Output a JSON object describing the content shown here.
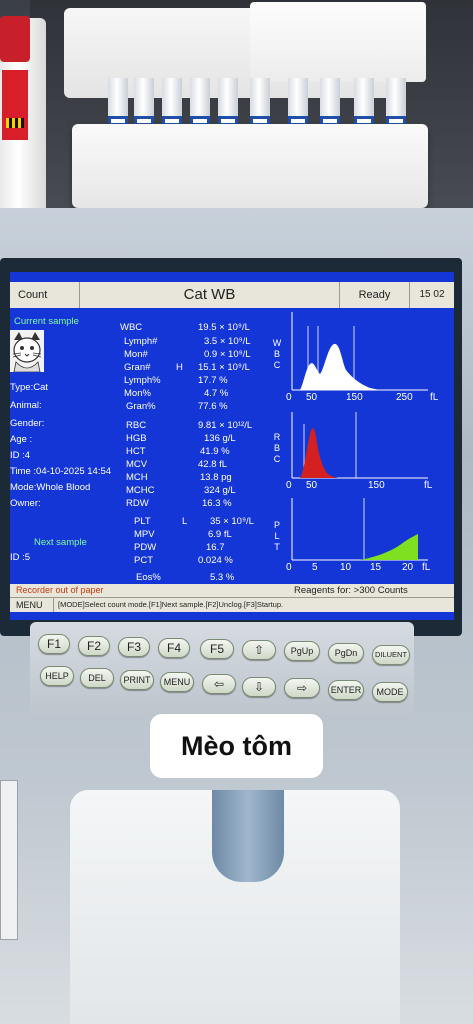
{
  "header": {
    "count_label": "Count",
    "title": "Cat WB",
    "status": "Ready",
    "time": "15 02"
  },
  "sample": {
    "current_label": "Current sample",
    "type": "Type:Cat",
    "animal": "Animal:",
    "gender": "Gender:",
    "age": "Age  :",
    "id": "ID    :4",
    "time": "Time :04-10-2025 14:54",
    "mode": "Mode:Whole Blood",
    "owner": "Owner:",
    "next_label": "Next sample",
    "next_id": "ID    :5"
  },
  "results": {
    "wbc_group": [
      {
        "name": "WBC",
        "flag": "",
        "value": "19.5 × 10⁹/L"
      },
      {
        "name": "Lymph#",
        "flag": "",
        "value": "3.5 × 10⁹/L"
      },
      {
        "name": "Mon#",
        "flag": "",
        "value": "0.9 × 10⁹/L"
      },
      {
        "name": "Gran#",
        "flag": "H",
        "value": "15.1 × 10⁹/L"
      },
      {
        "name": "Lymph%",
        "flag": "",
        "value": "17.7 %"
      },
      {
        "name": "Mon%",
        "flag": "",
        "value": "4.7 %"
      },
      {
        "name": "Gran%",
        "flag": "",
        "value": "77.6 %"
      }
    ],
    "rbc_group": [
      {
        "name": "RBC",
        "flag": "",
        "value": "9.81 × 10¹²/L"
      },
      {
        "name": "HGB",
        "flag": "",
        "value": "136 g/L"
      },
      {
        "name": "HCT",
        "flag": "",
        "value": "41.9 %"
      },
      {
        "name": "MCV",
        "flag": "",
        "value": "42.8 fL"
      },
      {
        "name": "MCH",
        "flag": "",
        "value": "13.8 pg"
      },
      {
        "name": "MCHC",
        "flag": "",
        "value": "324 g/L"
      },
      {
        "name": "RDW",
        "flag": "",
        "value": "16.3 %"
      }
    ],
    "plt_group": [
      {
        "name": "PLT",
        "flag": "L",
        "value": "35 × 10⁹/L"
      },
      {
        "name": "MPV",
        "flag": "",
        "value": "6.9 fL"
      },
      {
        "name": "PDW",
        "flag": "",
        "value": "16.7"
      },
      {
        "name": "PCT",
        "flag": "",
        "value": "0.024 %"
      }
    ],
    "eos": {
      "name": "Eos%",
      "value": "5.3 %"
    }
  },
  "histograms": {
    "wbc": {
      "axis_letters": [
        "W",
        "B",
        "C"
      ],
      "ticks": [
        "0",
        "50",
        "150",
        "250",
        "fL"
      ],
      "color": "#ffffff"
    },
    "rbc": {
      "axis_letters": [
        "R",
        "B",
        "C"
      ],
      "ticks": [
        "0",
        "50",
        "150",
        "fL"
      ],
      "color": "#d42020"
    },
    "plt": {
      "axis_letters": [
        "P",
        "L",
        "T"
      ],
      "ticks": [
        "0",
        "5",
        "10",
        "15",
        "20",
        "fL"
      ],
      "color": "#7ee01e"
    }
  },
  "messages": {
    "alert": "Recorder out of paper",
    "reagents": "Reagents for: >300 Counts",
    "menu_label": "MENU",
    "status_line": "[MODE]Select count mode.[F1]Next sample.[F2]Unclog.[F3]Startup."
  },
  "keypad": {
    "row1": [
      "F1",
      "F2",
      "F3",
      "F4",
      "F5",
      "⇧",
      "PgUp",
      "PgDn",
      "DILUENT"
    ],
    "row2": [
      "HELP",
      "DEL",
      "PRINT",
      "MENU",
      "⇦",
      "⇩",
      "⇨",
      "ENTER",
      "MODE"
    ]
  },
  "caption": "Mèo tôm"
}
